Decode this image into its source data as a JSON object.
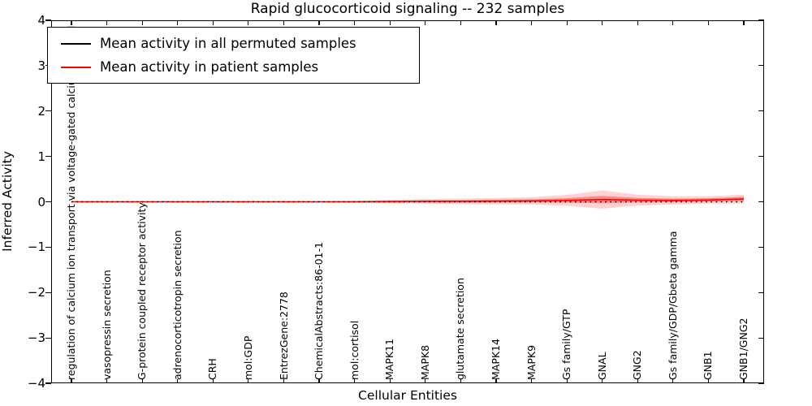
{
  "figure": {
    "title": "Rapid glucocorticoid signaling -- 232 samples",
    "xlabel": "Cellular Entities",
    "ylabel": "Inferred Activity"
  },
  "chart_data": {
    "type": "line",
    "title": "Rapid glucocorticoid signaling -- 232 samples",
    "xlabel": "Cellular Entities",
    "ylabel": "Inferred Activity",
    "ylim": [
      -4,
      4
    ],
    "ytick_labels": [
      "4",
      "3",
      "2",
      "1",
      "0",
      "−1",
      "−2",
      "−3",
      "−4"
    ],
    "grid": false,
    "legend_position": "upper left",
    "x_labels": [
      "regulation of calcium ion transport via voltage-gated calcium channel",
      "vasopressin secretion",
      "G-protein coupled receptor activity",
      "adrenocorticotropin secretion",
      "CRH",
      "mol:GDP",
      "EntrezGene:2778",
      "ChemicalAbstracts:86-01-1",
      "mol:cortisol",
      "MAPK11",
      "MAPK8",
      "glutamate secretion",
      "MAPK14",
      "MAPK9",
      "Gs family/GTP",
      "GNAL",
      "GNG2",
      "Gs family/GDP/Gbeta gamma",
      "GNB1",
      "GNB1/GNG2"
    ],
    "series": [
      {
        "name": "Mean activity in all permuted samples",
        "color": "#000000",
        "line_style": "dotted",
        "values": [
          0,
          0,
          0,
          0,
          0,
          0,
          0,
          0,
          0,
          0,
          0,
          0,
          0,
          0,
          0,
          0,
          0,
          0,
          0,
          0
        ]
      },
      {
        "name": "Mean activity in patient samples",
        "color": "#ff0000",
        "line_style": "solid",
        "values": [
          0,
          0,
          0,
          0,
          0,
          0,
          0,
          0,
          0,
          0.005,
          0.01,
          0.01,
          0.015,
          0.02,
          0.03,
          0.05,
          0.035,
          0.03,
          0.04,
          0.06
        ]
      }
    ],
    "patient_band": {
      "color": "#ff0000",
      "outer_halfwidth": [
        0.005,
        0.005,
        0.005,
        0.005,
        0.005,
        0.005,
        0.005,
        0.01,
        0.02,
        0.04,
        0.05,
        0.06,
        0.07,
        0.08,
        0.12,
        0.2,
        0.12,
        0.09,
        0.08,
        0.1
      ],
      "inner_halfwidth": [
        0.002,
        0.002,
        0.002,
        0.002,
        0.002,
        0.002,
        0.002,
        0.004,
        0.008,
        0.015,
        0.02,
        0.025,
        0.03,
        0.035,
        0.05,
        0.08,
        0.05,
        0.04,
        0.035,
        0.05
      ]
    }
  }
}
